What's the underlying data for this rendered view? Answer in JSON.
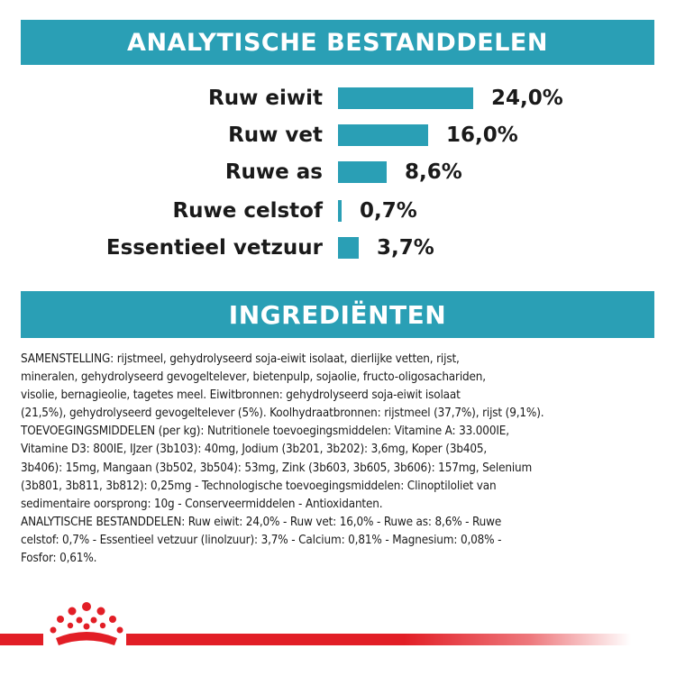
{
  "analytical": {
    "title": "ANALYTISCHE BESTANDDELEN",
    "rows": [
      {
        "label": "Ruw eiwit",
        "value": "24,0%",
        "percent": 24.0
      },
      {
        "label": "Ruw vet",
        "value": "16,0%",
        "percent": 16.0
      },
      {
        "label": "Ruwe as",
        "value": "8,6%",
        "percent": 8.6
      },
      {
        "label": "Ruwe celstof",
        "value": "0,7%",
        "percent": 0.7
      },
      {
        "label": "Essentieel vetzuur",
        "value": "3,7%",
        "percent": 3.7
      }
    ]
  },
  "ingredients": {
    "title": "INGREDIËNTEN",
    "lines": [
      "SAMENSTELLING: rijstmeel, gehydrolyseerd soja-eiwit isolaat, dierlijke vetten, rijst,",
      "mineralen, gehydrolyseerd gevogeltelever, bietenpulp, sojaolie, fructo-oligosachariden,",
      "visolie, bernagieolie, tagetes meel. Eiwitbronnen: gehydrolyseerd soja-eiwit isolaat",
      "(21,5%), gehydrolyseerd gevogeltelever (5%). Koolhydraatbronnen: rijstmeel (37,7%), rijst (9,1%).",
      "TOEVOEGINGSMIDDELEN (per kg): Nutritionele toevoegingsmiddelen: Vitamine A: 33.000IE,",
      "Vitamine D3: 800IE, IJzer (3b103): 40mg, Jodium (3b201, 3b202): 3,6mg, Koper (3b405,",
      "3b406): 15mg, Mangaan (3b502, 3b504): 53mg, Zink (3b603, 3b605, 3b606): 157mg, Selenium",
      "(3b801, 3b811, 3b812): 0,25mg - Technologische toevoegingsmiddelen: Clinoptiloliet van",
      "sedimentaire oorsprong: 10g - Conserveermiddelen - Antioxidanten.",
      "ANALYTISCHE BESTANDDELEN: Ruw eiwit: 24,0% - Ruw vet: 16,0% - Ruwe as: 8,6% - Ruwe",
      "celstof: 0,7% - Essentieel vetzuur (linolzuur): 3,7% - Calcium: 0,81% - Magnesium: 0,08% -",
      "Fosfor: 0,61%."
    ]
  },
  "colors": {
    "accent": "#2a9fb5",
    "brand_red": "#e21e26"
  },
  "logo": {
    "icon": "royal-canin-crown-icon"
  }
}
